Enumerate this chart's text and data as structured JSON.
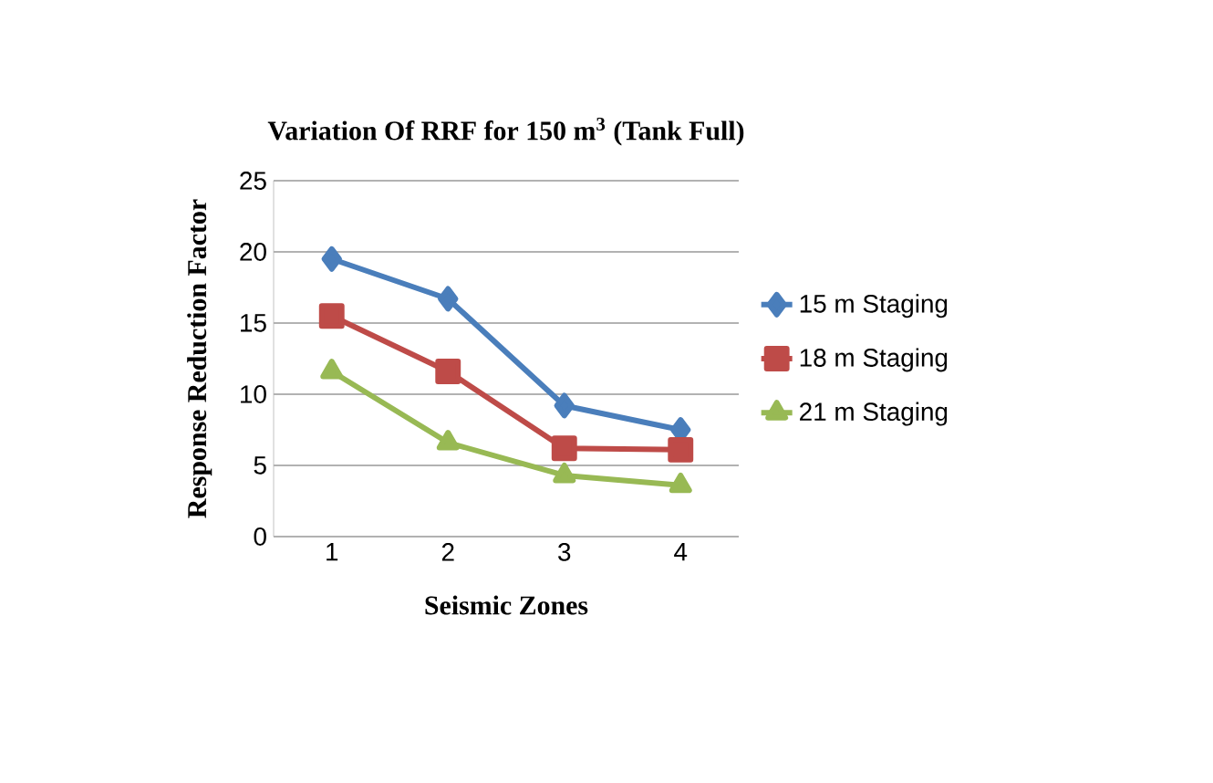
{
  "chart_data": {
    "type": "line",
    "title": "Variation Of RRF for 150 m$^{3}$ (Tank Full)",
    "xlabel": "Seismic Zones",
    "ylabel": "Response Reduction Factor",
    "categories": [
      "1",
      "2",
      "3",
      "4"
    ],
    "series": [
      {
        "name": "15 m Staging",
        "color": "#4a7ebb",
        "marker": "diamond",
        "values": [
          19.5,
          16.7,
          9.2,
          7.5
        ]
      },
      {
        "name": "18 m Staging",
        "color": "#be4b48",
        "marker": "square",
        "values": [
          15.5,
          11.6,
          6.2,
          6.1
        ]
      },
      {
        "name": "21 m Staging",
        "color": "#98b954",
        "marker": "triangle",
        "values": [
          11.6,
          6.6,
          4.3,
          3.6
        ]
      }
    ],
    "ylim": [
      0,
      25
    ],
    "yticks": [
      0,
      5,
      10,
      15,
      20,
      25
    ],
    "grid": "y",
    "legend": "right"
  }
}
